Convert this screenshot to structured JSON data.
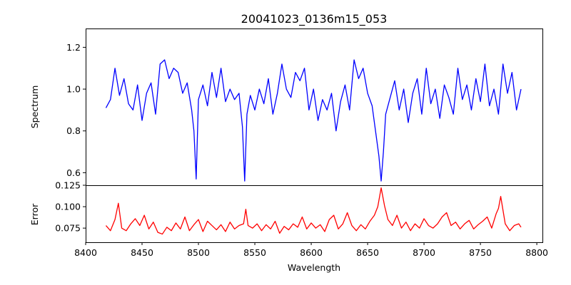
{
  "chart_data": {
    "type": "line",
    "title": "20041023_0136m15_053",
    "xlabel": "Wavelength",
    "xlim": [
      8400,
      8805
    ],
    "x_ticks": [
      8400,
      8450,
      8500,
      8550,
      8600,
      8650,
      8700,
      8750,
      8800
    ],
    "grid": false,
    "panels": [
      {
        "ylabel": "Spectrum",
        "ylim": [
          0.54,
          1.29
        ],
        "y_ticks": [
          0.6,
          0.8,
          1.0,
          1.2
        ],
        "y_tick_labels": [
          "0.6",
          "0.8",
          "1.0",
          "1.2"
        ],
        "color": "#0000ff",
        "series": [
          {
            "x": [
              8418,
              8422,
              8426,
              8430,
              8434,
              8438,
              8442,
              8446,
              8450,
              8454,
              8458,
              8462,
              8466,
              8470,
              8474,
              8478,
              8482,
              8486,
              8490,
              8494,
              8496,
              8498,
              8500,
              8504,
              8508,
              8512,
              8516,
              8520,
              8524,
              8528,
              8532,
              8536,
              8539,
              8541,
              8543,
              8546,
              8550,
              8554,
              8558,
              8562,
              8566,
              8570,
              8574,
              8578,
              8582,
              8586,
              8590,
              8594,
              8598,
              8602,
              8606,
              8610,
              8614,
              8618,
              8622,
              8626,
              8630,
              8634,
              8638,
              8642,
              8646,
              8650,
              8654,
              8657,
              8660,
              8662,
              8664,
              8666,
              8670,
              8674,
              8678,
              8682,
              8686,
              8690,
              8694,
              8698,
              8702,
              8706,
              8710,
              8714,
              8718,
              8722,
              8726,
              8730,
              8734,
              8738,
              8742,
              8746,
              8750,
              8754,
              8758,
              8762,
              8766,
              8770,
              8774,
              8778,
              8782,
              8786
            ],
            "y": [
              0.91,
              0.95,
              1.1,
              0.97,
              1.05,
              0.93,
              0.9,
              1.02,
              0.85,
              0.98,
              1.03,
              0.88,
              1.12,
              1.14,
              1.05,
              1.1,
              1.08,
              0.98,
              1.03,
              0.9,
              0.8,
              0.57,
              0.95,
              1.02,
              0.92,
              1.08,
              0.96,
              1.1,
              0.94,
              1.0,
              0.95,
              0.98,
              0.82,
              0.56,
              0.88,
              0.97,
              0.9,
              1.0,
              0.93,
              1.05,
              0.88,
              0.98,
              1.12,
              1.0,
              0.96,
              1.08,
              1.04,
              1.1,
              0.9,
              1.0,
              0.85,
              0.95,
              0.9,
              0.98,
              0.8,
              0.94,
              1.02,
              0.9,
              1.14,
              1.05,
              1.1,
              0.98,
              0.92,
              0.8,
              0.68,
              0.56,
              0.7,
              0.88,
              0.96,
              1.04,
              0.9,
              1.0,
              0.84,
              0.98,
              1.05,
              0.88,
              1.1,
              0.93,
              1.0,
              0.86,
              1.02,
              0.96,
              0.88,
              1.1,
              0.95,
              1.02,
              0.9,
              1.05,
              0.94,
              1.12,
              0.92,
              1.0,
              0.88,
              1.12,
              0.98,
              1.08,
              0.9,
              1.0
            ]
          }
        ]
      },
      {
        "ylabel": "Error",
        "ylim": [
          0.0585,
          0.125
        ],
        "y_ticks": [
          0.075,
          0.1,
          0.125
        ],
        "y_tick_labels": [
          "0.075",
          "0.100",
          "0.125"
        ],
        "color": "#ff0000",
        "series": [
          {
            "x": [
              8418,
              8422,
              8426,
              8429,
              8432,
              8436,
              8440,
              8444,
              8448,
              8452,
              8456,
              8460,
              8464,
              8468,
              8472,
              8476,
              8480,
              8484,
              8488,
              8492,
              8496,
              8500,
              8504,
              8508,
              8512,
              8516,
              8520,
              8524,
              8528,
              8532,
              8536,
              8540,
              8542,
              8544,
              8548,
              8552,
              8556,
              8560,
              8564,
              8568,
              8572,
              8576,
              8580,
              8584,
              8588,
              8592,
              8596,
              8600,
              8604,
              8608,
              8612,
              8616,
              8620,
              8624,
              8628,
              8632,
              8636,
              8640,
              8644,
              8648,
              8652,
              8656,
              8659,
              8662,
              8665,
              8668,
              8672,
              8676,
              8680,
              8684,
              8688,
              8692,
              8696,
              8700,
              8704,
              8708,
              8712,
              8716,
              8720,
              8724,
              8728,
              8732,
              8736,
              8740,
              8744,
              8748,
              8752,
              8756,
              8760,
              8764,
              8766,
              8768,
              8772,
              8776,
              8780,
              8784,
              8786
            ],
            "y": [
              0.078,
              0.072,
              0.085,
              0.104,
              0.075,
              0.072,
              0.08,
              0.086,
              0.078,
              0.09,
              0.074,
              0.082,
              0.07,
              0.068,
              0.076,
              0.072,
              0.081,
              0.074,
              0.088,
              0.072,
              0.079,
              0.085,
              0.071,
              0.083,
              0.078,
              0.073,
              0.079,
              0.071,
              0.082,
              0.074,
              0.078,
              0.08,
              0.097,
              0.078,
              0.075,
              0.08,
              0.072,
              0.079,
              0.074,
              0.083,
              0.069,
              0.077,
              0.073,
              0.08,
              0.076,
              0.088,
              0.074,
              0.081,
              0.075,
              0.079,
              0.071,
              0.085,
              0.09,
              0.074,
              0.08,
              0.093,
              0.078,
              0.072,
              0.079,
              0.074,
              0.083,
              0.09,
              0.1,
              0.122,
              0.101,
              0.085,
              0.078,
              0.09,
              0.075,
              0.082,
              0.072,
              0.08,
              0.075,
              0.086,
              0.078,
              0.075,
              0.08,
              0.088,
              0.093,
              0.078,
              0.082,
              0.074,
              0.08,
              0.084,
              0.074,
              0.079,
              0.083,
              0.088,
              0.075,
              0.092,
              0.098,
              0.112,
              0.08,
              0.072,
              0.078,
              0.08,
              0.076
            ]
          }
        ]
      }
    ]
  }
}
